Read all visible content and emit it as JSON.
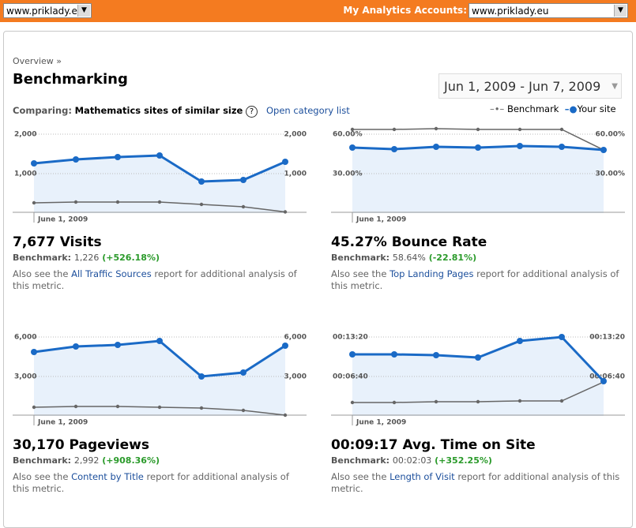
{
  "top_bar": {
    "site_select": "www.priklady.eu",
    "accounts_label": "My Analytics Accounts:",
    "accounts_select": "www.priklady.eu"
  },
  "header": {
    "breadcrumb": "Overview »",
    "title": "Benchmarking",
    "date_range": "Jun 1, 2009 - Jun 7, 2009",
    "comparing_label": "Comparing:",
    "comparing_value": "Mathematics sites of similar size",
    "help": "?",
    "category_link": "Open category list"
  },
  "charts": [
    {
      "type": "line",
      "ylim": [
        0,
        2200
      ],
      "yticks": [
        {
          "value": 1000,
          "label": "1,000"
        },
        {
          "value": 2000,
          "label": "2,000"
        }
      ],
      "date_label": "June 1, 2009",
      "series": [
        {
          "name": "Benchmark",
          "color": "#666666",
          "values": [
            260,
            280,
            280,
            280,
            220,
            160,
            30
          ]
        },
        {
          "name": "Your site",
          "color": "#1a6ac6",
          "values": [
            1260,
            1360,
            1420,
            1460,
            800,
            840,
            1300
          ]
        }
      ],
      "metric": "7,677 Visits",
      "benchmark_label": "Benchmark:",
      "benchmark_value": "1,226",
      "change": "(+526.18%)",
      "note_before": "Also see the",
      "link": "All Traffic Sources",
      "note_after": "report for additional analysis of this metric."
    },
    {
      "type": "line",
      "ylim": [
        0,
        66
      ],
      "yticks": [
        {
          "value": 30,
          "label": "30.00%"
        },
        {
          "value": 60,
          "label": "60.00%"
        }
      ],
      "date_label": "June 1, 2009",
      "series": [
        {
          "name": "Benchmark",
          "color": "#666666",
          "values": [
            63.6,
            63.6,
            64.2,
            63.6,
            63.6,
            63.6,
            48
          ]
        },
        {
          "name": "Your site",
          "color": "#1a6ac6",
          "values": [
            49.8,
            48.6,
            50.4,
            49.8,
            51,
            50.4,
            48
          ]
        }
      ],
      "metric": "45.27% Bounce Rate",
      "benchmark_label": "Benchmark:",
      "benchmark_value": "58.64%",
      "change": "(-22.81%)",
      "note_before": "Also see the",
      "link": "Top Landing Pages",
      "note_after": "report for additional analysis of this metric."
    },
    {
      "type": "line",
      "ylim": [
        0,
        6600
      ],
      "yticks": [
        {
          "value": 3000,
          "label": "3,000"
        },
        {
          "value": 6000,
          "label": "6,000"
        }
      ],
      "date_label": "June 1, 2009",
      "series": [
        {
          "name": "Benchmark",
          "color": "#666666",
          "values": [
            660,
            720,
            720,
            660,
            600,
            420,
            60
          ]
        },
        {
          "name": "Your site",
          "color": "#1a6ac6",
          "values": [
            4860,
            5280,
            5400,
            5700,
            3000,
            3300,
            5340
          ]
        }
      ],
      "metric": "30,170 Pageviews",
      "benchmark_label": "Benchmark:",
      "benchmark_value": "2,992",
      "change": "(+908.36%)",
      "note_before": "Also see the",
      "link": "Content by Title",
      "note_after": "report for additional analysis of this metric."
    },
    {
      "type": "line",
      "ylim": [
        0,
        880
      ],
      "yticks": [
        {
          "value": 400,
          "label": "00:06:40"
        },
        {
          "value": 800,
          "label": "00:13:20"
        }
      ],
      "date_label": "June 1, 2009",
      "series": [
        {
          "name": "Benchmark",
          "color": "#666666",
          "values": [
            136,
            136,
            144,
            144,
            152,
            152,
            344
          ]
        },
        {
          "name": "Your site",
          "color": "#1a6ac6",
          "values": [
            624,
            624,
            616,
            592,
            760,
            800,
            352
          ]
        }
      ],
      "metric": "00:09:17 Avg. Time on Site",
      "benchmark_label": "Benchmark:",
      "benchmark_value": "00:02:03",
      "change": "(+352.25%)",
      "note_before": "Also see the",
      "link": "Length of Visit",
      "note_after": "report for additional analysis of this metric."
    }
  ]
}
